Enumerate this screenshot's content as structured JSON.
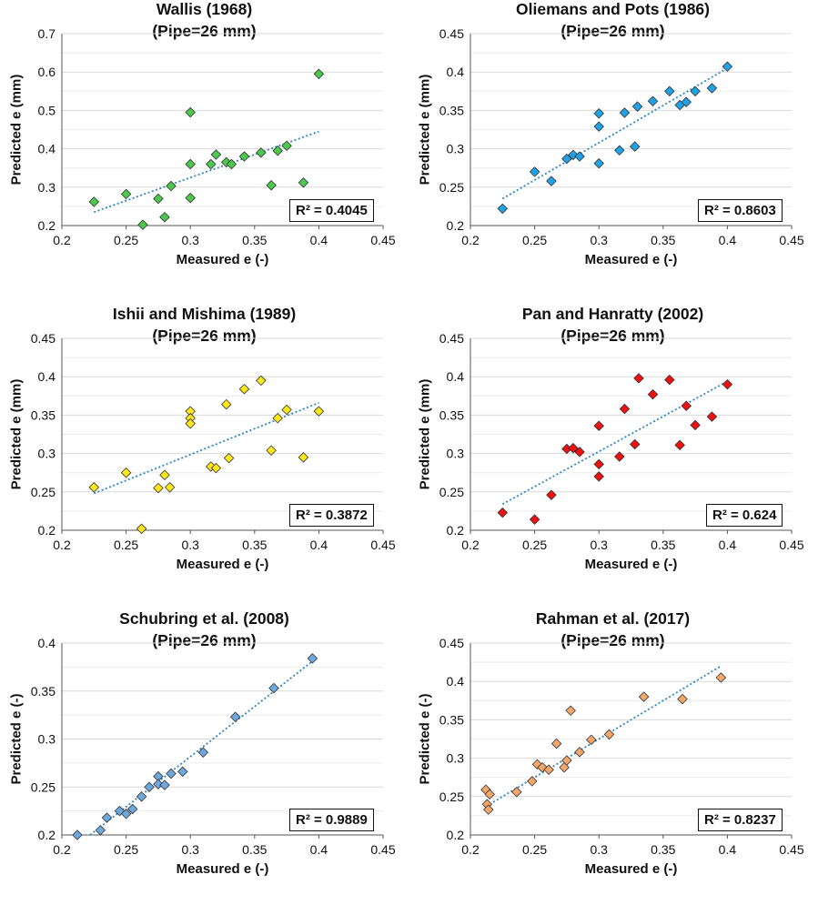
{
  "chart_data": [
    {
      "type": "scatter",
      "title": "Wallis (1968)",
      "subtitle": "(Pipe=26 mm)",
      "xlabel": "Measured e (-)",
      "ylabel": "Predicted e (mm)",
      "xlim": [
        0.2,
        0.45
      ],
      "ylim": [
        0.2,
        0.7
      ],
      "xticks": [
        "0.2",
        "0.25",
        "0.3",
        "0.35",
        "0.4",
        "0.45"
      ],
      "yticks": [
        "0.2",
        "0.3",
        "0.4",
        "0.5",
        "0.6",
        "0.7"
      ],
      "marker_color": "#4CC94C",
      "trend_color": "#2E86C1",
      "r2_label": "R² = 0.4045",
      "trend": {
        "x0": 0.225,
        "y0": 0.235,
        "x1": 0.4,
        "y1": 0.445
      },
      "points": [
        [
          0.225,
          0.262
        ],
        [
          0.25,
          0.282
        ],
        [
          0.263,
          0.202
        ],
        [
          0.275,
          0.27
        ],
        [
          0.28,
          0.222
        ],
        [
          0.285,
          0.303
        ],
        [
          0.3,
          0.495
        ],
        [
          0.3,
          0.36
        ],
        [
          0.3,
          0.272
        ],
        [
          0.316,
          0.36
        ],
        [
          0.32,
          0.385
        ],
        [
          0.328,
          0.365
        ],
        [
          0.332,
          0.36
        ],
        [
          0.342,
          0.38
        ],
        [
          0.355,
          0.39
        ],
        [
          0.363,
          0.305
        ],
        [
          0.368,
          0.395
        ],
        [
          0.375,
          0.408
        ],
        [
          0.388,
          0.312
        ],
        [
          0.4,
          0.595
        ]
      ]
    },
    {
      "type": "scatter",
      "title": "Oliemans and Pots (1986)",
      "subtitle": "(Pipe=26 mm)",
      "xlabel": "Measured e (-)",
      "ylabel": "Predicted e (mm)",
      "xlim": [
        0.2,
        0.45
      ],
      "ylim": [
        0.2,
        0.45
      ],
      "xticks": [
        "0.2",
        "0.25",
        "0.3",
        "0.35",
        "0.4",
        "0.45"
      ],
      "yticks": [
        "0.2",
        "0.25",
        "0.3",
        "0.35",
        "0.4",
        "0.45"
      ],
      "marker_color": "#1FA3E6",
      "trend_color": "#2E86C1",
      "r2_label": "R² = 0.8603",
      "trend": {
        "x0": 0.225,
        "y0": 0.235,
        "x1": 0.4,
        "y1": 0.405
      },
      "points": [
        [
          0.225,
          0.222
        ],
        [
          0.25,
          0.27
        ],
        [
          0.263,
          0.258
        ],
        [
          0.275,
          0.287
        ],
        [
          0.28,
          0.292
        ],
        [
          0.285,
          0.29
        ],
        [
          0.3,
          0.346
        ],
        [
          0.3,
          0.329
        ],
        [
          0.3,
          0.281
        ],
        [
          0.316,
          0.298
        ],
        [
          0.32,
          0.347
        ],
        [
          0.328,
          0.303
        ],
        [
          0.33,
          0.355
        ],
        [
          0.342,
          0.362
        ],
        [
          0.355,
          0.375
        ],
        [
          0.363,
          0.357
        ],
        [
          0.368,
          0.361
        ],
        [
          0.375,
          0.375
        ],
        [
          0.388,
          0.379
        ],
        [
          0.4,
          0.407
        ]
      ]
    },
    {
      "type": "scatter",
      "title": "Ishii and Mishima (1989)",
      "subtitle": "(Pipe=26 mm)",
      "xlabel": "Measured e (-)",
      "ylabel": "Predicted e (mm)",
      "xlim": [
        0.2,
        0.45
      ],
      "ylim": [
        0.2,
        0.45
      ],
      "xticks": [
        "0.2",
        "0.25",
        "0.3",
        "0.35",
        "0.4",
        "0.45"
      ],
      "yticks": [
        "0.2",
        "0.25",
        "0.3",
        "0.35",
        "0.4",
        "0.45"
      ],
      "marker_color": "#FFE81A",
      "trend_color": "#2E86C1",
      "r2_label": "R² = 0.3872",
      "trend": {
        "x0": 0.225,
        "y0": 0.248,
        "x1": 0.4,
        "y1": 0.366
      },
      "points": [
        [
          0.225,
          0.256
        ],
        [
          0.25,
          0.275
        ],
        [
          0.262,
          0.202
        ],
        [
          0.275,
          0.255
        ],
        [
          0.28,
          0.272
        ],
        [
          0.284,
          0.256
        ],
        [
          0.3,
          0.355
        ],
        [
          0.3,
          0.346
        ],
        [
          0.3,
          0.339
        ],
        [
          0.316,
          0.283
        ],
        [
          0.32,
          0.281
        ],
        [
          0.328,
          0.364
        ],
        [
          0.33,
          0.294
        ],
        [
          0.342,
          0.384
        ],
        [
          0.355,
          0.395
        ],
        [
          0.363,
          0.304
        ],
        [
          0.368,
          0.346
        ],
        [
          0.375,
          0.357
        ],
        [
          0.388,
          0.295
        ],
        [
          0.4,
          0.355
        ]
      ]
    },
    {
      "type": "scatter",
      "title": "Pan and Hanratty (2002)",
      "subtitle": "(Pipe=26 mm)",
      "xlabel": "Measured e (-)",
      "ylabel": "Predicted e (mm)",
      "xlim": [
        0.2,
        0.45
      ],
      "ylim": [
        0.2,
        0.45
      ],
      "xticks": [
        "0.2",
        "0.25",
        "0.3",
        "0.35",
        "0.4",
        "0.45"
      ],
      "yticks": [
        "0.2",
        "0.25",
        "0.3",
        "0.35",
        "0.4",
        "0.45"
      ],
      "marker_color": "#EE1111",
      "trend_color": "#2E86C1",
      "r2_label": "R² = 0.624",
      "trend": {
        "x0": 0.225,
        "y0": 0.234,
        "x1": 0.4,
        "y1": 0.394
      },
      "points": [
        [
          0.225,
          0.223
        ],
        [
          0.25,
          0.214
        ],
        [
          0.263,
          0.246
        ],
        [
          0.275,
          0.306
        ],
        [
          0.28,
          0.307
        ],
        [
          0.285,
          0.302
        ],
        [
          0.3,
          0.336
        ],
        [
          0.3,
          0.286
        ],
        [
          0.3,
          0.27
        ],
        [
          0.316,
          0.296
        ],
        [
          0.32,
          0.358
        ],
        [
          0.328,
          0.312
        ],
        [
          0.331,
          0.398
        ],
        [
          0.342,
          0.377
        ],
        [
          0.355,
          0.396
        ],
        [
          0.363,
          0.311
        ],
        [
          0.368,
          0.362
        ],
        [
          0.375,
          0.337
        ],
        [
          0.388,
          0.348
        ],
        [
          0.4,
          0.39
        ]
      ]
    },
    {
      "type": "scatter",
      "title": "Schubring et al. (2008)",
      "subtitle": "(Pipe=26 mm)",
      "xlabel": "Measured e (-)",
      "ylabel": "Predicted e (-)",
      "xlim": [
        0.2,
        0.45
      ],
      "ylim": [
        0.2,
        0.4
      ],
      "xticks": [
        "0.2",
        "0.25",
        "0.3",
        "0.35",
        "0.4",
        "0.45"
      ],
      "yticks": [
        "0.2",
        "0.25",
        "0.3",
        "0.35",
        "0.4"
      ],
      "marker_color": "#6FA8DC",
      "trend_color": "#2E86C1",
      "r2_label": "R² = 0.9889",
      "trend": {
        "x0": 0.222,
        "y0": 0.2,
        "x1": 0.395,
        "y1": 0.381
      },
      "points": [
        [
          0.212,
          0.2
        ],
        [
          0.23,
          0.205
        ],
        [
          0.235,
          0.218
        ],
        [
          0.245,
          0.225
        ],
        [
          0.25,
          0.222
        ],
        [
          0.255,
          0.227
        ],
        [
          0.262,
          0.24
        ],
        [
          0.268,
          0.25
        ],
        [
          0.275,
          0.261
        ],
        [
          0.275,
          0.253
        ],
        [
          0.28,
          0.252
        ],
        [
          0.285,
          0.264
        ],
        [
          0.294,
          0.266
        ],
        [
          0.31,
          0.286
        ],
        [
          0.335,
          0.323
        ],
        [
          0.365,
          0.353
        ],
        [
          0.395,
          0.384
        ]
      ]
    },
    {
      "type": "scatter",
      "title": "Rahman et al. (2017)",
      "subtitle": "(Pipe=26 mm)",
      "xlabel": "Measured e (-)",
      "ylabel": "Predicted e (-)",
      "xlim": [
        0.2,
        0.45
      ],
      "ylim": [
        0.2,
        0.45
      ],
      "xticks": [
        "0.2",
        "0.25",
        "0.3",
        "0.35",
        "0.4",
        "0.45"
      ],
      "yticks": [
        "0.2",
        "0.25",
        "0.3",
        "0.35",
        "0.4",
        "0.45"
      ],
      "marker_color": "#F4A76B",
      "trend_color": "#2E86C1",
      "r2_label": "R² = 0.8237",
      "trend": {
        "x0": 0.215,
        "y0": 0.24,
        "x1": 0.395,
        "y1": 0.42
      },
      "points": [
        [
          0.212,
          0.259
        ],
        [
          0.213,
          0.24
        ],
        [
          0.214,
          0.233
        ],
        [
          0.215,
          0.253
        ],
        [
          0.236,
          0.256
        ],
        [
          0.248,
          0.27
        ],
        [
          0.252,
          0.292
        ],
        [
          0.256,
          0.288
        ],
        [
          0.261,
          0.285
        ],
        [
          0.267,
          0.319
        ],
        [
          0.273,
          0.288
        ],
        [
          0.275,
          0.297
        ],
        [
          0.278,
          0.362
        ],
        [
          0.285,
          0.308
        ],
        [
          0.294,
          0.324
        ],
        [
          0.308,
          0.331
        ],
        [
          0.335,
          0.38
        ],
        [
          0.365,
          0.377
        ],
        [
          0.395,
          0.405
        ]
      ]
    }
  ]
}
